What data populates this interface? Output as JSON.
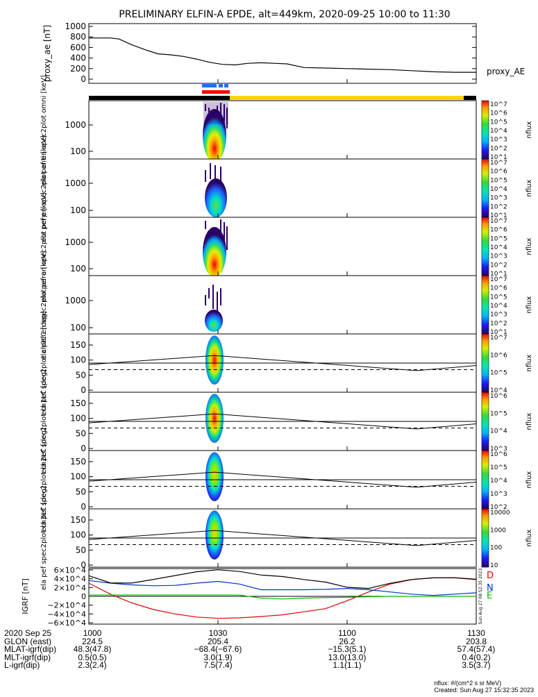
{
  "title": "PRELIMINARY ELFIN-A EPDE, alt=449km, 2020-09-25 10:00 to 11:30",
  "colors": {
    "black_bar": "#000000",
    "yellow_bar": "#ffd400",
    "blue_bar": "#1e6fff",
    "red_bar": "#ff0000",
    "grf_D": "#e00000",
    "grf_N": "#0033cc",
    "grf_E": "#00bb00"
  },
  "panels": {
    "proxy_ae": {
      "ylabel": "proxy_ae [nT]",
      "legend": "proxy_AE",
      "ticks": [
        "1000",
        "800",
        "600",
        "400",
        "200",
        "0"
      ]
    },
    "spec": [
      {
        "ylabel": "ela pef en spec2plot omni [keV]",
        "ticks": [
          "1000",
          "100"
        ],
        "cbar_ticks": [
          "10^7",
          "10^6",
          "10^5",
          "10^4",
          "10^3",
          "10^2",
          "10^1"
        ],
        "cbar_label": "nflux"
      },
      {
        "ylabel": "ela pef en spec2plot anti [keV]",
        "ticks": [
          "1000",
          "100"
        ],
        "cbar_ticks": [
          "10^7",
          "10^6",
          "10^5",
          "10^4",
          "10^3",
          "10^2",
          "10^1"
        ],
        "cbar_label": "nflux"
      },
      {
        "ylabel": "ela pef en spec2plot perp [keV]",
        "ticks": [
          "1000",
          "100"
        ],
        "cbar_ticks": [
          "10^7",
          "10^6",
          "10^5",
          "10^4",
          "10^3",
          "10^2",
          "10^1"
        ],
        "cbar_label": "nflux"
      },
      {
        "ylabel": "ela pef en spec2plot para [keV]",
        "ticks": [
          "1000",
          "100"
        ],
        "cbar_ticks": [
          "10^7",
          "10^6",
          "10^5",
          "10^4",
          "10^3",
          "10^2",
          "10^1"
        ],
        "cbar_label": "nflux"
      }
    ],
    "pa": [
      {
        "ylabel": "ela pef spec2plot ch0LC [deg]",
        "ticks": [
          "150",
          "100",
          "50",
          "0"
        ],
        "cbar_ticks": [
          "10^7",
          "10^6",
          "10^5",
          "10^4"
        ],
        "cbar_label": "nflux"
      },
      {
        "ylabel": "ela pef spec2plot ch1LC [deg]",
        "ticks": [
          "150",
          "100",
          "50",
          "0"
        ],
        "cbar_ticks": [
          "10^6",
          "10^5",
          "10^4",
          "10^3"
        ],
        "cbar_label": "nflux"
      },
      {
        "ylabel": "ela pef spec2plot ch2LC [deg]",
        "ticks": [
          "150",
          "100",
          "50",
          "0"
        ],
        "cbar_ticks": [
          "10^6",
          "10^5",
          "10^4",
          "10^3",
          "10^2"
        ],
        "cbar_label": "nflux"
      },
      {
        "ylabel": "ela pef spec2plot ch3LC [deg]",
        "ticks": [
          "150",
          "100",
          "50",
          "0"
        ],
        "cbar_ticks": [
          "10000",
          "1000",
          "100",
          "10"
        ],
        "cbar_label": "nflux"
      }
    ],
    "grf": {
      "ylabel": "IGRF [nT]",
      "ticks": [
        "6×10^4",
        "4×10^4",
        "2×10^4",
        "0",
        "−2×10^4",
        "−4×10^4",
        "−6×10^4"
      ],
      "legend": [
        "D",
        "N",
        "E"
      ],
      "stamp": "Sun Aug 27 08:52:35 2023"
    }
  },
  "chart_data": [
    {
      "type": "line",
      "title": "PRELIMINARY ELFIN-A EPDE, alt=449km, 2020-09-25 10:00 to 11:30",
      "ylabel": "proxy_ae [nT]",
      "ylim": [
        0,
        1000
      ],
      "x": [
        "10:00",
        "10:05",
        "10:07",
        "10:10",
        "10:13",
        "10:16",
        "10:19",
        "10:22",
        "10:25",
        "10:28",
        "10:31",
        "10:34",
        "10:37",
        "10:40",
        "10:43",
        "10:46",
        "10:50",
        "10:55",
        "11:00",
        "11:05",
        "11:10",
        "11:15",
        "11:20",
        "11:25",
        "11:30"
      ],
      "series": [
        {
          "name": "proxy_AE",
          "values": [
            780,
            780,
            760,
            650,
            560,
            480,
            460,
            430,
            380,
            320,
            280,
            270,
            300,
            310,
            300,
            290,
            220,
            210,
            200,
            190,
            180,
            160,
            140,
            130,
            130
          ]
        }
      ]
    },
    {
      "type": "heatmap",
      "ylabel": "ela pef en spec2plot omni [keV]",
      "xrange": [
        "10:00",
        "11:30"
      ],
      "active_interval": [
        "10:27",
        "10:33"
      ]
    },
    {
      "type": "line",
      "ylabel": "IGRF [nT]",
      "ylim": [
        -60000,
        60000
      ],
      "x": [
        "10:00",
        "10:05",
        "10:10",
        "10:15",
        "10:20",
        "10:25",
        "10:30",
        "10:35",
        "10:40",
        "10:45",
        "10:50",
        "10:55",
        "11:00",
        "11:05",
        "11:10",
        "11:15",
        "11:20",
        "11:25",
        "11:30"
      ],
      "series": [
        {
          "name": "D",
          "values": [
            30000,
            5000,
            -15000,
            -30000,
            -40000,
            -47000,
            -50000,
            -49000,
            -46000,
            -42000,
            -35000,
            -28000,
            -10000,
            10000,
            28000,
            38000,
            42000,
            42000,
            38000
          ]
        },
        {
          "name": "N",
          "values": [
            36000,
            30000,
            26000,
            24000,
            25000,
            30000,
            34000,
            28000,
            15000,
            15000,
            15000,
            16000,
            18000,
            15000,
            10000,
            5000,
            2000,
            5000,
            8000
          ]
        },
        {
          "name": "E",
          "values": [
            3000,
            3000,
            3000,
            3000,
            3000,
            3000,
            3000,
            3000,
            -4000,
            -6000,
            -4000,
            -3000,
            -2000,
            -1000,
            0,
            0,
            0,
            0,
            0
          ]
        }
      ]
    }
  ],
  "ephemeris": {
    "labels": [
      "2020 Sep 25",
      "GLON (east)",
      "MLAT-igrf(dip)",
      "MLT-igrf(dip)",
      "L-igrf(dip)"
    ],
    "cols": [
      [
        "1000",
        "224.5",
        "48.3(47.8)",
        "0.5(0.5)",
        "2.3(2.4)"
      ],
      [
        "1030",
        "205.4",
        "−68.4(−67.6)",
        "3.0(1.9)",
        "7.5(7.4)"
      ],
      [
        "1100",
        "26.2",
        "−15.3(5.1)",
        "13.0(13.0)",
        "1.1(1.1)"
      ],
      [
        "1130",
        "203.8",
        "57.4(57.4)",
        "0.4(0.2)",
        "3.5(3.7)"
      ]
    ]
  },
  "footer": {
    "units": "nflux: #/(cm^2 s sr MeV)",
    "created": "Created: Sun Aug 27 15:32:35 2023"
  }
}
